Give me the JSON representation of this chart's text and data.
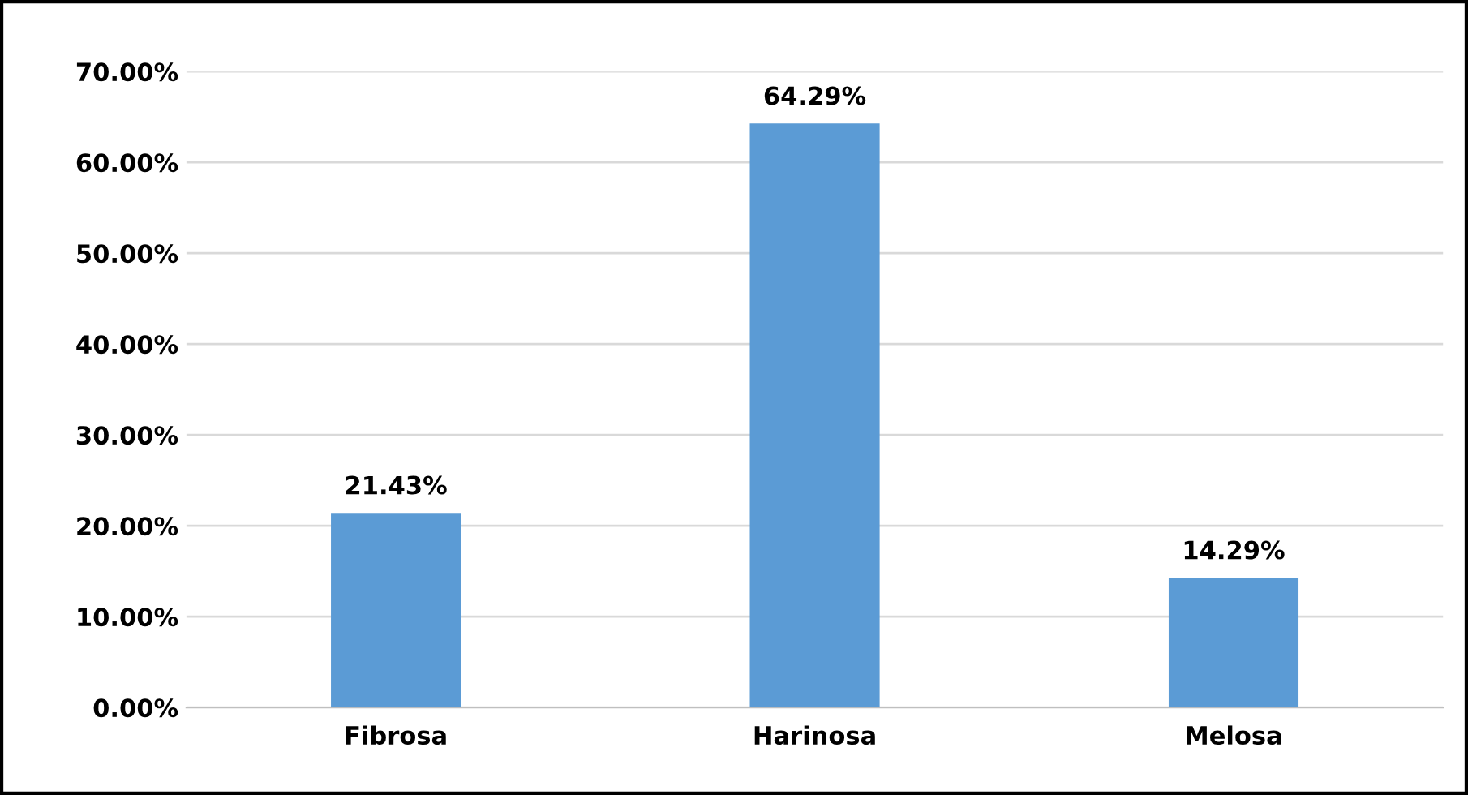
{
  "chart_data": {
    "type": "bar",
    "categories": [
      "Fibrosa",
      "Harinosa",
      "Melosa"
    ],
    "values": [
      21.43,
      64.29,
      14.29
    ],
    "color": "#5b9bd5",
    "value_labels": [
      "21.43%",
      "64.29%",
      "14.29%"
    ],
    "ylim": [
      0,
      70
    ],
    "yticks": [
      {
        "value": 0,
        "label": "0.00%"
      },
      {
        "value": 10,
        "label": "10.00%"
      },
      {
        "value": 20,
        "label": "20.00%"
      },
      {
        "value": 30,
        "label": "30.00%"
      },
      {
        "value": 40,
        "label": "40.00%"
      },
      {
        "value": 50,
        "label": "50.00%"
      },
      {
        "value": 60,
        "label": "60.00%"
      },
      {
        "value": 70,
        "label": "70.00%"
      }
    ],
    "grid": "y",
    "legend": false
  }
}
